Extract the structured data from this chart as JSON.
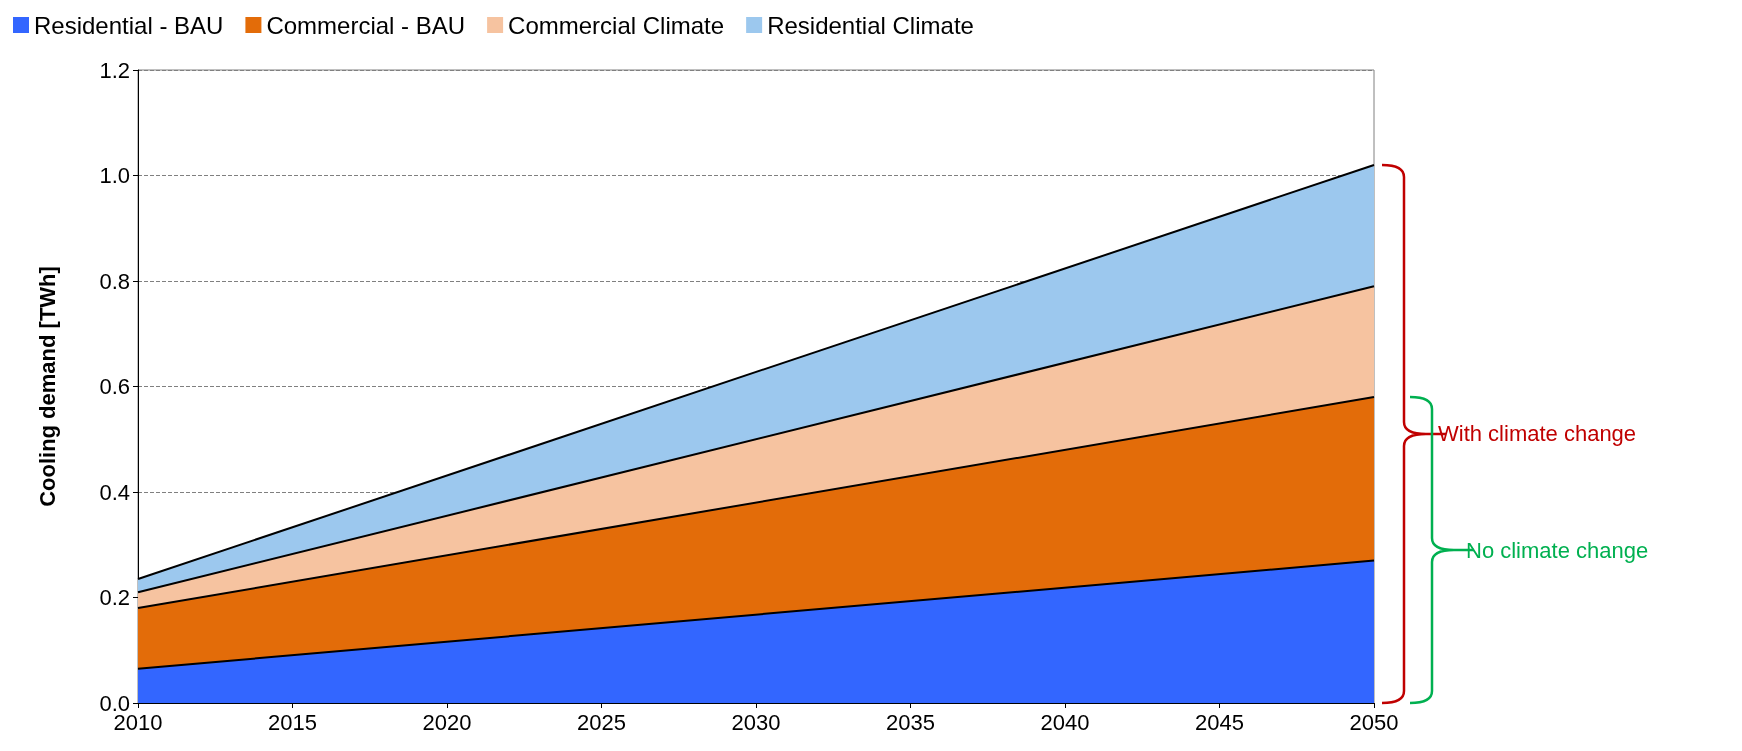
{
  "chart_data": {
    "type": "area",
    "stacked": true,
    "ylabel": "Cooling demand [TWh]",
    "x": [
      2010,
      2050
    ],
    "series": [
      {
        "name": "Residential - BAU",
        "color": "#3366ff",
        "values": [
          0.065,
          0.27
        ]
      },
      {
        "name": "Commercial - BAU",
        "color": "#e36c09",
        "values": [
          0.115,
          0.31
        ]
      },
      {
        "name": "Commercial Climate",
        "color": "#f6c3a0",
        "values": [
          0.03,
          0.21
        ]
      },
      {
        "name": "Residential Climate",
        "color": "#9cc8ee",
        "values": [
          0.025,
          0.23
        ]
      }
    ],
    "xlim": [
      2010,
      2050
    ],
    "xticks": [
      2010,
      2015,
      2020,
      2025,
      2030,
      2035,
      2040,
      2045,
      2050
    ],
    "ylim": [
      0,
      1.2
    ],
    "yticks": [
      {
        "value": 0,
        "label": "0.0"
      },
      0.2,
      0.4,
      0.6,
      0.8,
      {
        "value": 1,
        "label": "1.0"
      },
      1.2
    ],
    "grid": "y",
    "legend": "top",
    "annotations": [
      "With climate change",
      "No climate change"
    ]
  }
}
